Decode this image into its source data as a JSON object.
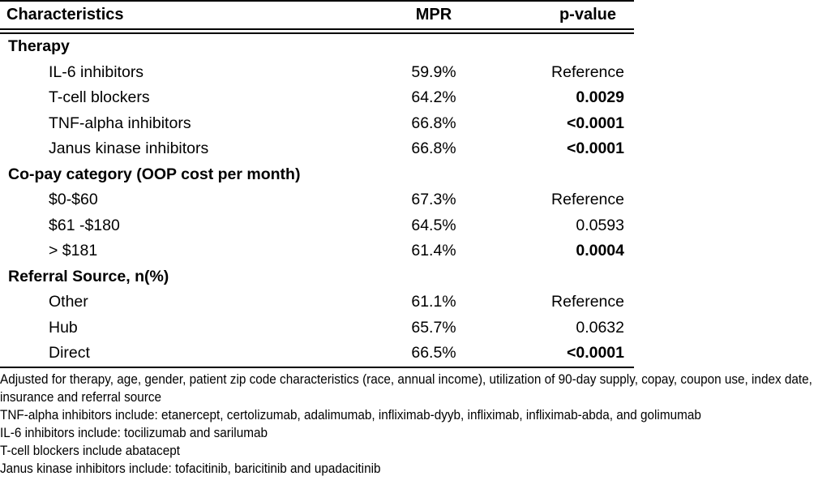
{
  "table": {
    "headers": {
      "characteristics": "Characteristics",
      "mpr": "MPR",
      "p_value": "p-value"
    },
    "sections": [
      {
        "title": "Therapy",
        "rows": [
          {
            "label": "IL-6 inhibitors",
            "mpr": "59.9%",
            "p": "Reference",
            "p_bold": false
          },
          {
            "label": "T-cell blockers",
            "mpr": "64.2%",
            "p": "0.0029",
            "p_bold": true
          },
          {
            "label": "TNF-alpha inhibitors",
            "mpr": "66.8%",
            "p": "<0.0001",
            "p_bold": true
          },
          {
            "label": "Janus kinase inhibitors",
            "mpr": "66.8%",
            "p": "<0.0001",
            "p_bold": true
          }
        ]
      },
      {
        "title": "Co-pay category (OOP cost per month)",
        "rows": [
          {
            "label": "$0-$60",
            "mpr": "67.3%",
            "p": "Reference",
            "p_bold": false
          },
          {
            "label": "$61 -$180",
            "mpr": "64.5%",
            "p": "0.0593",
            "p_bold": false
          },
          {
            "label": "> $181",
            "mpr": "61.4%",
            "p": "0.0004",
            "p_bold": true
          }
        ]
      },
      {
        "title": "Referral Source, n(%)",
        "rows": [
          {
            "label": "Other",
            "mpr": "61.1%",
            "p": "Reference",
            "p_bold": false
          },
          {
            "label": "Hub",
            "mpr": "65.7%",
            "p": "0.0632",
            "p_bold": false
          },
          {
            "label": "Direct",
            "mpr": "66.5%",
            "p": "<0.0001",
            "p_bold": true
          }
        ]
      }
    ]
  },
  "footnotes": [
    "Adjusted for therapy, age, gender, patient zip code characteristics (race, annual income), utilization of 90-day supply, copay, coupon use, index date, insurance and referral source",
    "TNF-alpha inhibitors include: etanercept, certolizumab, adalimumab, infliximab-dyyb, infliximab, infliximab-abda, and golimumab",
    "IL-6 inhibitors include: tocilizumab and sarilumab",
    "T-cell blockers include abatacept",
    "Janus kinase inhibitors include: tofacitinib, baricitinib and upadacitinib"
  ],
  "colors": {
    "text": "#000000",
    "background": "#ffffff",
    "rule": "#000000"
  }
}
